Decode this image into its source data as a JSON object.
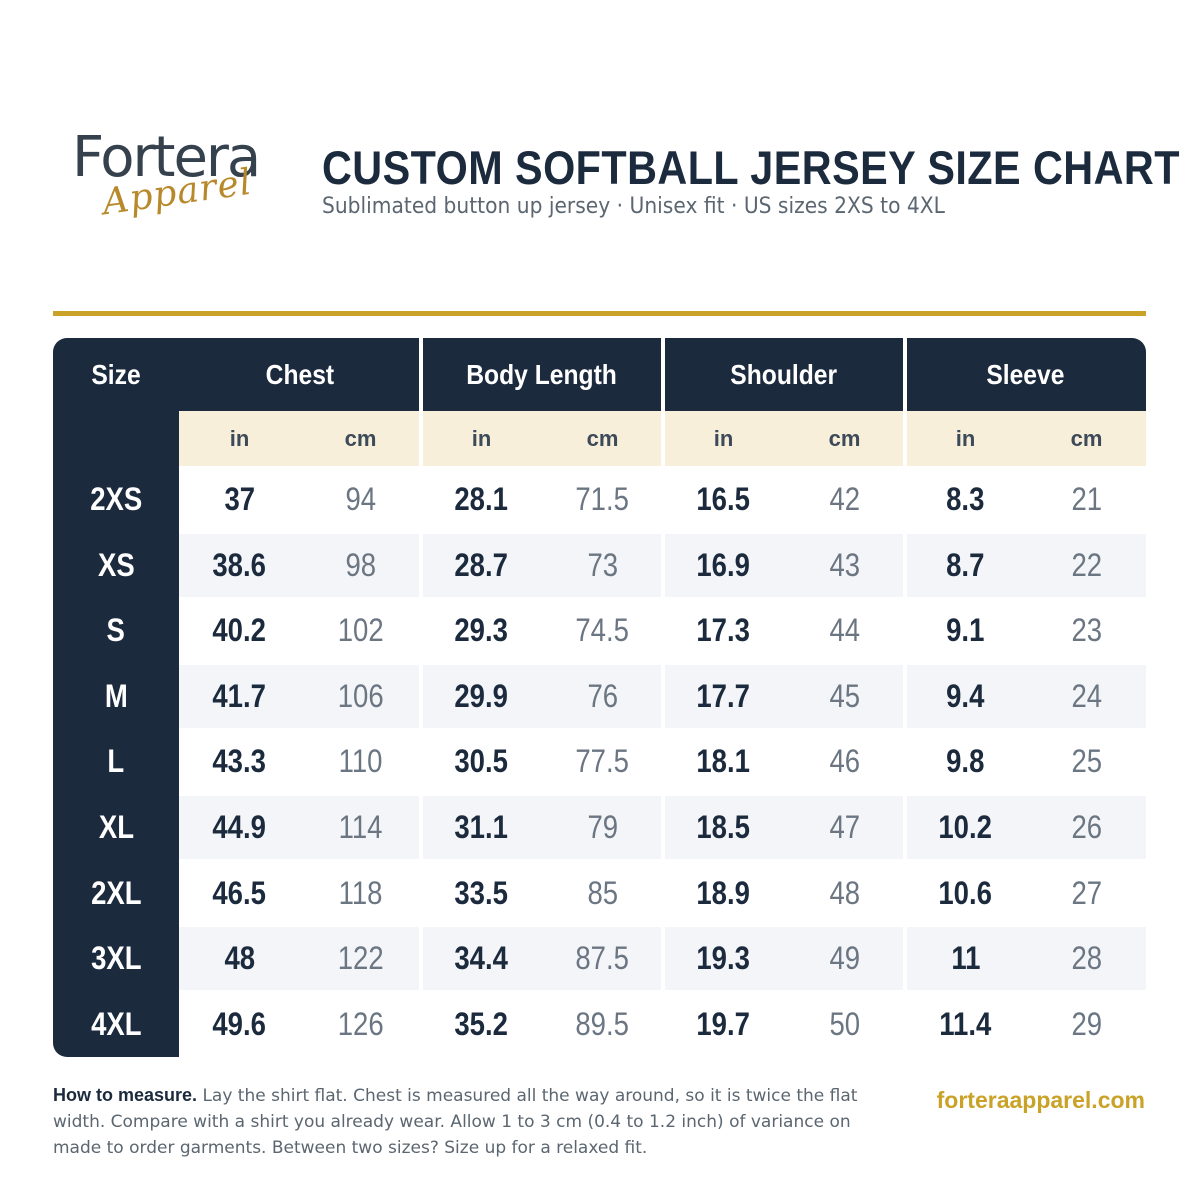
{
  "brand": {
    "logo_word": "Fortera",
    "logo_script": "Apparel",
    "accent_gold": "#c9a227",
    "navy": "#1c2a3d",
    "cream": "#f7efd9"
  },
  "header": {
    "title": "CUSTOM SOFTBALL JERSEY SIZE CHART",
    "subtitle": "Sublimated button up jersey · Unisex fit · US sizes 2XS to 4XL"
  },
  "table": {
    "size_header": "Size",
    "groups": [
      "Chest",
      "Body Length",
      "Shoulder",
      "Sleeve"
    ],
    "units": [
      "in",
      "cm"
    ],
    "rows": [
      {
        "size": "2XS",
        "values": [
          "37",
          "94",
          "28.1",
          "71.5",
          "16.5",
          "42",
          "8.3",
          "21"
        ]
      },
      {
        "size": "XS",
        "values": [
          "38.6",
          "98",
          "28.7",
          "73",
          "16.9",
          "43",
          "8.7",
          "22"
        ]
      },
      {
        "size": "S",
        "values": [
          "40.2",
          "102",
          "29.3",
          "74.5",
          "17.3",
          "44",
          "9.1",
          "23"
        ]
      },
      {
        "size": "M",
        "values": [
          "41.7",
          "106",
          "29.9",
          "76",
          "17.7",
          "45",
          "9.4",
          "24"
        ]
      },
      {
        "size": "L",
        "values": [
          "43.3",
          "110",
          "30.5",
          "77.5",
          "18.1",
          "46",
          "9.8",
          "25"
        ]
      },
      {
        "size": "XL",
        "values": [
          "44.9",
          "114",
          "31.1",
          "79",
          "18.5",
          "47",
          "10.2",
          "26"
        ]
      },
      {
        "size": "2XL",
        "values": [
          "46.5",
          "118",
          "33.5",
          "85",
          "18.9",
          "48",
          "10.6",
          "27"
        ]
      },
      {
        "size": "3XL",
        "values": [
          "48",
          "122",
          "34.4",
          "87.5",
          "19.3",
          "49",
          "11",
          "28"
        ]
      },
      {
        "size": "4XL",
        "values": [
          "49.6",
          "126",
          "35.2",
          "89.5",
          "19.7",
          "50",
          "11.4",
          "29"
        ]
      }
    ]
  },
  "footer": {
    "note_lead": "How to measure.",
    "note_text": " Lay the shirt flat. Chest is measured all the way around, so it is twice the flat width. Compare with a shirt you already wear. Allow 1 to 3 cm (0.4 to 1.2 inch) of variance on made to order garments. Between two sizes? Size up for a relaxed fit.",
    "website": "forteraapparel.com"
  }
}
